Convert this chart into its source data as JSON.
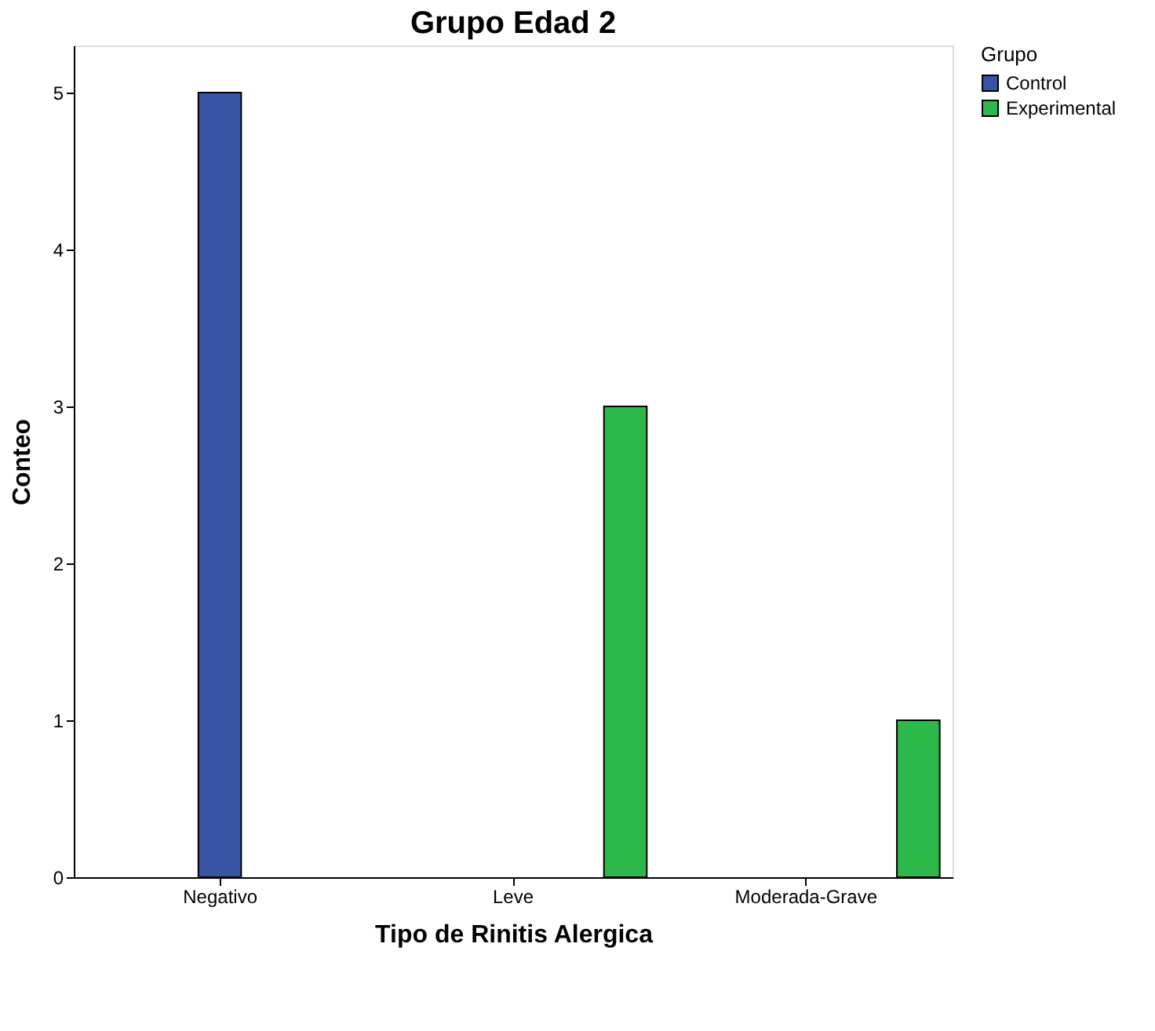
{
  "chart_data": {
    "type": "bar",
    "title": "Grupo Edad 2",
    "xlabel": "Tipo de Rinitis Alergica",
    "ylabel": "Conteo",
    "legend_title": "Grupo",
    "categories": [
      "Negativo",
      "Leve",
      "Moderada-Grave"
    ],
    "series": [
      {
        "name": "Control",
        "color": "#3953a4",
        "values": [
          5,
          null,
          null
        ]
      },
      {
        "name": "Experimental",
        "color": "#2db84b",
        "values": [
          null,
          3,
          1
        ]
      }
    ],
    "ylim": [
      0,
      5.3
    ],
    "yticks": [
      0,
      1,
      2,
      3,
      4,
      5
    ],
    "grid": false,
    "legend": "top right"
  }
}
